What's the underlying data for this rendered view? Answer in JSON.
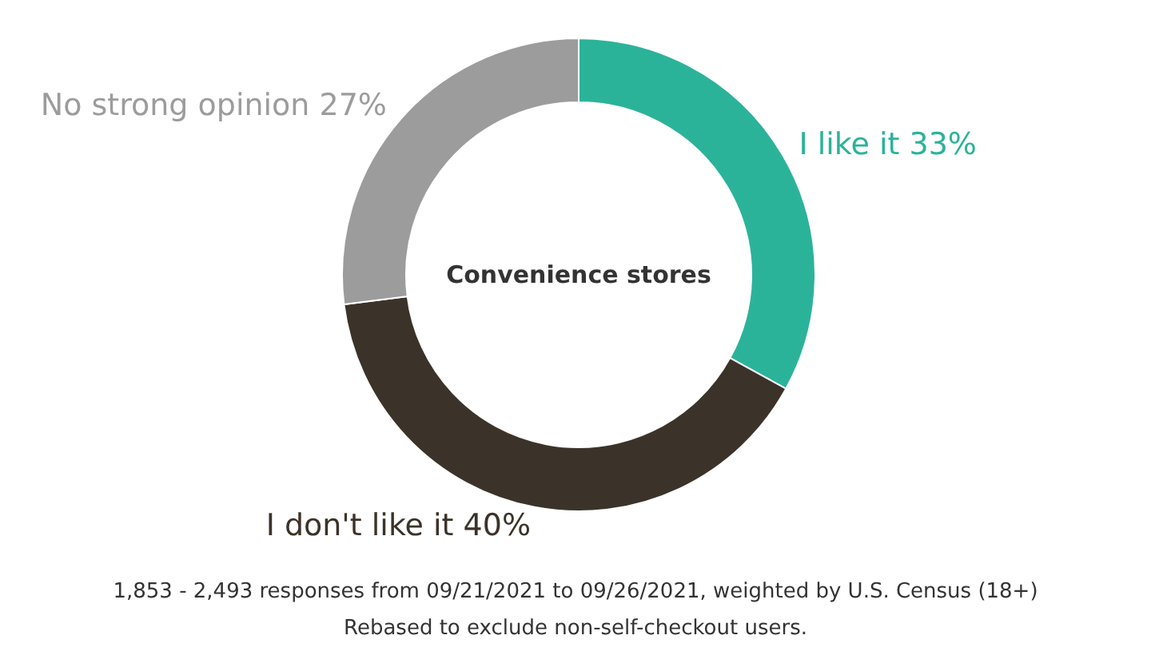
{
  "chart_data": {
    "type": "donut",
    "title": "Convenience stores",
    "categories": [
      "I like it",
      "I don't like it",
      "No strong opinion"
    ],
    "values": [
      33,
      40,
      27
    ],
    "value_labels": [
      "33%",
      "40%",
      "27%"
    ],
    "colors": [
      "#2bb39a",
      "#3b3329",
      "#9c9c9c"
    ],
    "annotations": [
      "1,853 - 2,493 responses from 09/21/2021 to 09/26/2021, weighted by U.S. Census (18+)",
      "Rebased to exclude non-self-checkout users."
    ]
  }
}
